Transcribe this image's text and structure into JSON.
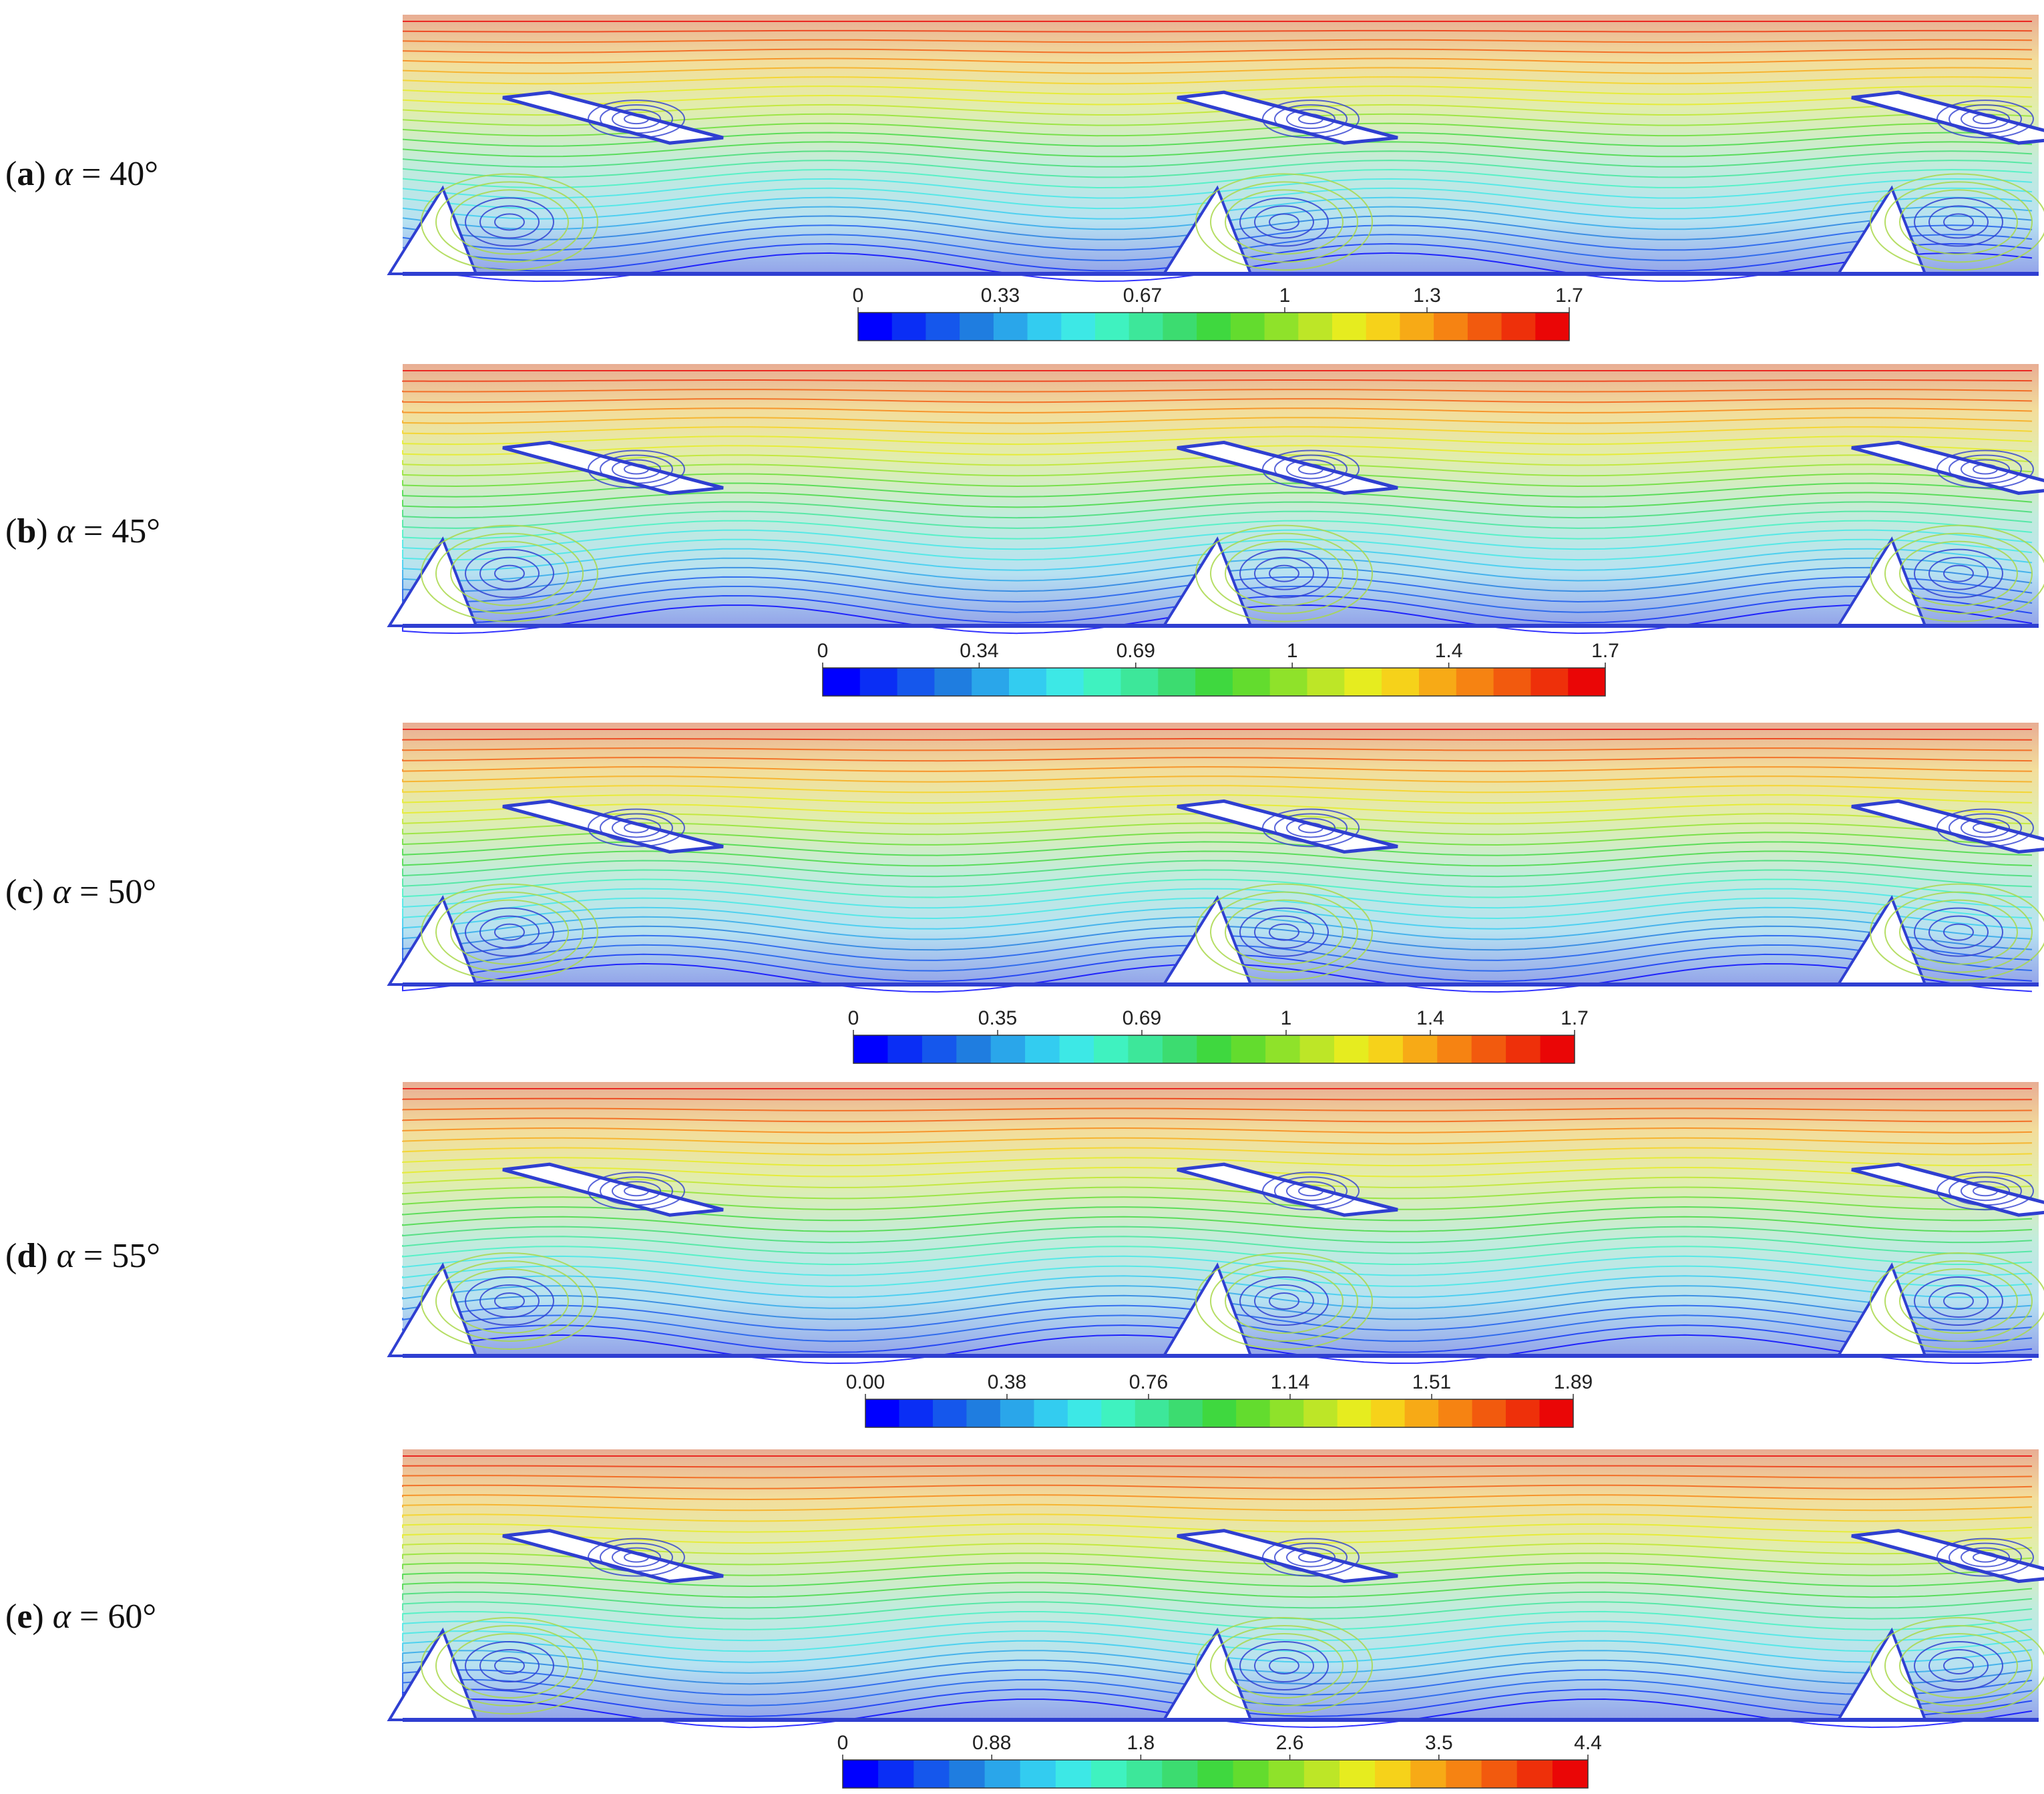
{
  "panels": [
    {
      "letter": "a",
      "symbol": "α",
      "value": "40°",
      "ticks": [
        "0",
        "0.33",
        "0.67",
        "1",
        "1.3",
        "1.7"
      ]
    },
    {
      "letter": "b",
      "symbol": "α",
      "value": "45°",
      "ticks": [
        "0",
        "0.34",
        "0.69",
        "1",
        "1.4",
        "1.7"
      ]
    },
    {
      "letter": "c",
      "symbol": "α",
      "value": "50°",
      "ticks": [
        "0",
        "0.35",
        "0.69",
        "1",
        "1.4",
        "1.7"
      ]
    },
    {
      "letter": "d",
      "symbol": "α",
      "value": "55°",
      "ticks": [
        "0.00",
        "0.38",
        "0.76",
        "1.14",
        "1.51",
        "1.89"
      ]
    },
    {
      "letter": "e",
      "symbol": "α",
      "value": "60°",
      "ticks": [
        "0",
        "0.88",
        "1.8",
        "2.6",
        "3.5",
        "4.4"
      ]
    }
  ],
  "colorbar": {
    "colors": [
      "#0000ff",
      "#0a2ef5",
      "#1557ec",
      "#1f7de0",
      "#2aa6ea",
      "#33ccf0",
      "#3de8e6",
      "#3ff2c0",
      "#3de79a",
      "#3cdc70",
      "#3fd83f",
      "#63dc2e",
      "#8fe22a",
      "#bde627",
      "#e6ec1f",
      "#f6d21a",
      "#f7aa16",
      "#f68312",
      "#f25a0e",
      "#ee300a",
      "#ea0606"
    ]
  },
  "rib_colors": {
    "fast": "#d9523a",
    "mid": "#a9d84a",
    "slow": "#2f3fd1"
  }
}
